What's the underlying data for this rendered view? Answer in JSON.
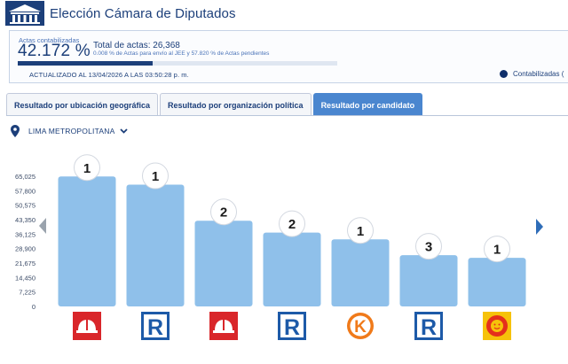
{
  "header": {
    "title": "Elección Cámara de Diputados",
    "logo_icon": "congress-building-icon"
  },
  "summary": {
    "pct_label": "Actas contabilizadas",
    "pct_value": "42.172 %",
    "progress": 0.42172,
    "total_label": "Total de actas: 26,368",
    "sub_text": "0.008 % de Actas para envío al JEE y 57.820 % de Actas pendientes",
    "updated": "ACTUALIZADO AL 13/04/2026 A LAS 03:50:28 p. m.",
    "legend_label": "Contabilizadas ("
  },
  "tabs": [
    {
      "label": "Resultado por ubicación geográfica",
      "active": false
    },
    {
      "label": "Resultado por organización política",
      "active": false
    },
    {
      "label": "Resultado por candidato",
      "active": true
    }
  ],
  "region": {
    "label": "LIMA METROPOLITANA",
    "icon": "location-pin-icon"
  },
  "chart_data": {
    "type": "bar",
    "categories": [
      "1",
      "1",
      "2",
      "2",
      "1",
      "3",
      "1"
    ],
    "values": [
      64900,
      60800,
      42800,
      36900,
      33500,
      25600,
      24300
    ],
    "yticks": [
      "65,025",
      "57,800",
      "50,575",
      "43,350",
      "36,125",
      "28,900",
      "21,675",
      "14,450",
      "7,225",
      "0"
    ],
    "ylim": [
      0,
      65025
    ],
    "bar_color": "#8fc0ea",
    "logos": [
      "helmet-logo",
      "r-logo",
      "helmet-logo",
      "r-logo",
      "k-logo",
      "r-logo",
      "sun-logo"
    ]
  },
  "colors": {
    "primary": "#1c3f7a",
    "accent": "#4a86cf",
    "bar": "#8fc0ea",
    "logo_red": "#d9262a",
    "logo_blue": "#1d5aa8",
    "logo_orange": "#f07a1a"
  }
}
